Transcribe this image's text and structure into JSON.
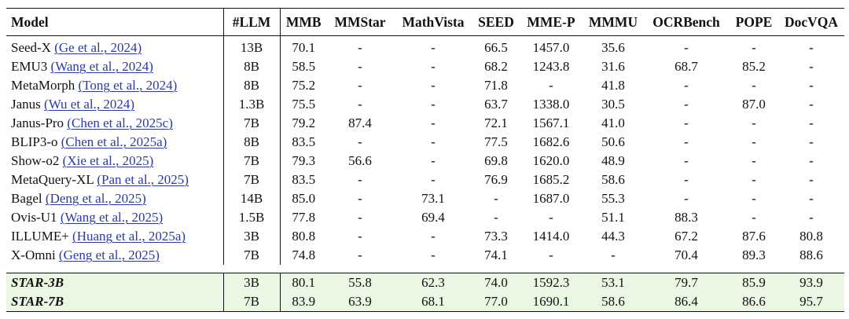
{
  "headers": [
    "Model",
    "#LLM",
    "MMB",
    "MMStar",
    "MathVista",
    "SEED",
    "MME-P",
    "MMMU",
    "OCRBench",
    "POPE",
    "DocVQA"
  ],
  "rows": [
    {
      "name": "Seed-X",
      "cite": "(Ge et al., 2024)",
      "llm": "13B",
      "values": [
        "70.1",
        "-",
        "-",
        "66.5",
        "1457.0",
        "35.6",
        "-",
        "-",
        "-"
      ]
    },
    {
      "name": "EMU3",
      "cite": "(Wang et al., 2024)",
      "llm": "8B",
      "values": [
        "58.5",
        "-",
        "-",
        "68.2",
        "1243.8",
        "31.6",
        "68.7",
        "85.2",
        "-"
      ]
    },
    {
      "name": "MetaMorph",
      "cite": "(Tong et al., 2024)",
      "llm": "8B",
      "values": [
        "75.2",
        "-",
        "-",
        "71.8",
        "-",
        "41.8",
        "-",
        "-",
        "-"
      ]
    },
    {
      "name": "Janus",
      "cite": "(Wu et al., 2024)",
      "llm": "1.3B",
      "values": [
        "75.5",
        "-",
        "-",
        "63.7",
        "1338.0",
        "30.5",
        "-",
        "87.0",
        "-"
      ]
    },
    {
      "name": "Janus-Pro",
      "cite": "(Chen et al., 2025c)",
      "llm": "7B",
      "values": [
        "79.2",
        "87.4",
        "-",
        "72.1",
        "1567.1",
        "41.0",
        "-",
        "-",
        "-"
      ]
    },
    {
      "name": "BLIP3-o",
      "cite": "(Chen et al., 2025a)",
      "llm": "8B",
      "values": [
        "83.5",
        "-",
        "-",
        "77.5",
        "1682.6",
        "50.6",
        "-",
        "-",
        "-"
      ]
    },
    {
      "name": "Show-o2",
      "cite": "(Xie et al., 2025)",
      "llm": "7B",
      "values": [
        "79.3",
        "56.6",
        "-",
        "69.8",
        "1620.0",
        "48.9",
        "-",
        "-",
        "-"
      ]
    },
    {
      "name": "MetaQuery-XL",
      "cite": "(Pan et al., 2025)",
      "llm": "7B",
      "values": [
        "83.5",
        "-",
        "-",
        "76.9",
        "1685.2",
        "58.6",
        "-",
        "-",
        "-"
      ]
    },
    {
      "name": "Bagel",
      "cite": "(Deng et al., 2025)",
      "llm": "14B",
      "values": [
        "85.0",
        "-",
        "73.1",
        "-",
        "1687.0",
        "55.3",
        "-",
        "-",
        "-"
      ]
    },
    {
      "name": "Ovis-U1",
      "cite": "(Wang et al., 2025)",
      "llm": "1.5B",
      "values": [
        "77.8",
        "-",
        "69.4",
        "-",
        "-",
        "51.1",
        "88.3",
        "-",
        "-"
      ]
    },
    {
      "name": "ILLUME+",
      "cite": "(Huang et al., 2025a)",
      "llm": "3B",
      "values": [
        "80.8",
        "-",
        "-",
        "73.3",
        "1414.0",
        "44.3",
        "67.2",
        "87.6",
        "80.8"
      ]
    },
    {
      "name": "X-Omni",
      "cite": "(Geng et al., 2025)",
      "llm": "7B",
      "values": [
        "74.8",
        "-",
        "-",
        "74.1",
        "-",
        "-",
        "70.4",
        "89.3",
        "88.6"
      ]
    }
  ],
  "ours": [
    {
      "name": "STAR-3B",
      "llm": "3B",
      "values": [
        "80.1",
        "55.8",
        "62.3",
        "74.0",
        "1592.3",
        "53.1",
        "79.7",
        "85.9",
        "93.9"
      ]
    },
    {
      "name": "STAR-7B",
      "llm": "7B",
      "values": [
        "83.9",
        "63.9",
        "68.1",
        "77.0",
        "1690.1",
        "58.6",
        "86.4",
        "86.6",
        "95.7"
      ]
    }
  ],
  "colors": {
    "highlight": "#eaf7e3",
    "citation": "#2a3aa6"
  }
}
